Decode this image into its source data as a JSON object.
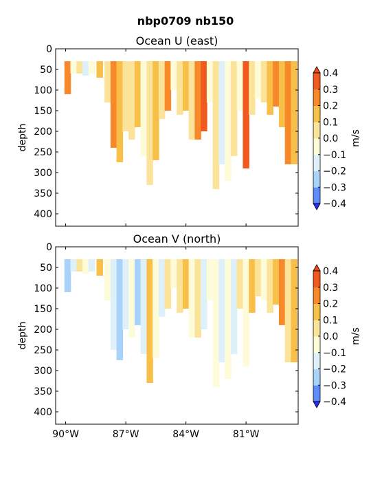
{
  "figure": {
    "title": "nbp0709 nb150"
  },
  "colors": {
    "levels": [
      -0.4,
      -0.3,
      -0.2,
      -0.1,
      0.0,
      0.1,
      0.2,
      0.3,
      0.4
    ],
    "under": "#2a2aff",
    "bins": [
      "#3a3aff",
      "#5c8dfb",
      "#a9d2fb",
      "#def1fb",
      "#fefbd8",
      "#fbe39a",
      "#f8c048",
      "#f7892a",
      "#f05a1e"
    ],
    "over": "#ee4a12"
  },
  "chart_data": [
    {
      "type": "heatmap",
      "title": "Ocean U (east)",
      "xlabel": "",
      "ylabel": "depth",
      "colorbar_label": "m/s",
      "colorbar_ticks": [
        "0.4",
        "0.3",
        "0.2",
        "0.1",
        "0.0",
        "−0.1",
        "−0.2",
        "−0.3",
        "−0.4"
      ],
      "xlim": [
        -90.5,
        -78.4
      ],
      "ylim": [
        430,
        0
      ],
      "yticks": [
        "0",
        "50",
        "100",
        "150",
        "200",
        "250",
        "300",
        "350",
        "400"
      ],
      "xtick_labels": [],
      "columns": [
        {
          "lon": -89.9,
          "top": 30,
          "bottom": 110,
          "u": 0.25
        },
        {
          "lon": -89.6,
          "top": 30,
          "bottom": 60,
          "u": -0.05
        },
        {
          "lon": -89.3,
          "top": 30,
          "bottom": 60,
          "u": 0.05
        },
        {
          "lon": -89.0,
          "top": 30,
          "bottom": 65,
          "u": -0.15
        },
        {
          "lon": -88.7,
          "top": 30,
          "bottom": 60,
          "u": -0.05
        },
        {
          "lon": -88.3,
          "top": 30,
          "bottom": 70,
          "u": 0.15
        },
        {
          "lon": -87.9,
          "top": 30,
          "bottom": 130,
          "u": 0.05
        },
        {
          "lon": -87.6,
          "top": 30,
          "bottom": 240,
          "u": 0.25
        },
        {
          "lon": -87.3,
          "top": 30,
          "bottom": 275,
          "u": 0.15
        },
        {
          "lon": -87.0,
          "top": 30,
          "bottom": 200,
          "u": 0.05
        },
        {
          "lon": -86.7,
          "top": 30,
          "bottom": 220,
          "u": 0.05
        },
        {
          "lon": -86.4,
          "top": 30,
          "bottom": 190,
          "u": 0.15
        },
        {
          "lon": -86.1,
          "top": 30,
          "bottom": 260,
          "u": -0.05
        },
        {
          "lon": -85.8,
          "top": 30,
          "bottom": 330,
          "u": 0.05
        },
        {
          "lon": -85.5,
          "top": 30,
          "bottom": 270,
          "u": 0.15
        },
        {
          "lon": -85.2,
          "top": 30,
          "bottom": 170,
          "u": 0.05
        },
        {
          "lon": -84.9,
          "top": 30,
          "bottom": 150,
          "u": 0.25
        },
        {
          "lon": -84.6,
          "top": 30,
          "bottom": 100,
          "u": -0.05
        },
        {
          "lon": -84.3,
          "top": 30,
          "bottom": 160,
          "u": 0.05
        },
        {
          "lon": -84.0,
          "top": 30,
          "bottom": 150,
          "u": 0.15
        },
        {
          "lon": -83.7,
          "top": 30,
          "bottom": 220,
          "u": 0.05
        },
        {
          "lon": -83.4,
          "top": 30,
          "bottom": 220,
          "u": 0.25
        },
        {
          "lon": -83.1,
          "top": 30,
          "bottom": 200,
          "u": 0.35
        },
        {
          "lon": -82.8,
          "top": 30,
          "bottom": 130,
          "u": -0.05
        },
        {
          "lon": -82.5,
          "top": 30,
          "bottom": 340,
          "u": 0.05
        },
        {
          "lon": -82.2,
          "top": 30,
          "bottom": 280,
          "u": -0.15
        },
        {
          "lon": -81.9,
          "top": 30,
          "bottom": 320,
          "u": -0.05
        },
        {
          "lon": -81.6,
          "top": 30,
          "bottom": 260,
          "u": 0.05
        },
        {
          "lon": -81.3,
          "top": 30,
          "bottom": 150,
          "u": -0.05
        },
        {
          "lon": -81.0,
          "top": 30,
          "bottom": 290,
          "u": 0.35
        },
        {
          "lon": -80.7,
          "top": 30,
          "bottom": 160,
          "u": 0.05
        },
        {
          "lon": -80.4,
          "top": 30,
          "bottom": 120,
          "u": -0.05
        },
        {
          "lon": -80.1,
          "top": 30,
          "bottom": 130,
          "u": 0.05
        },
        {
          "lon": -79.8,
          "top": 30,
          "bottom": 160,
          "u": 0.15
        },
        {
          "lon": -79.5,
          "top": 30,
          "bottom": 140,
          "u": 0.25
        },
        {
          "lon": -79.2,
          "top": 30,
          "bottom": 190,
          "u": 0.15
        },
        {
          "lon": -78.9,
          "top": 30,
          "bottom": 280,
          "u": 0.25
        },
        {
          "lon": -78.6,
          "top": 30,
          "bottom": 280,
          "u": 0.15
        }
      ]
    },
    {
      "type": "heatmap",
      "title": "Ocean V (north)",
      "xlabel": "",
      "ylabel": "depth",
      "colorbar_label": "m/s",
      "colorbar_ticks": [
        "0.4",
        "0.3",
        "0.2",
        "0.1",
        "0.0",
        "−0.1",
        "−0.2",
        "−0.3",
        "−0.4"
      ],
      "xlim": [
        -90.5,
        -78.4
      ],
      "ylim": [
        430,
        0
      ],
      "yticks": [
        "0",
        "50",
        "100",
        "150",
        "200",
        "250",
        "300",
        "350",
        "400"
      ],
      "xtick_labels": [
        "90°W",
        "87°W",
        "84°W",
        "81°W"
      ],
      "xtick_values": [
        -90,
        -87,
        -84,
        -81
      ],
      "columns": [
        {
          "lon": -89.9,
          "top": 30,
          "bottom": 110,
          "u": -0.25
        },
        {
          "lon": -89.6,
          "top": 30,
          "bottom": 60,
          "u": -0.15
        },
        {
          "lon": -89.3,
          "top": 30,
          "bottom": 60,
          "u": 0.05
        },
        {
          "lon": -89.0,
          "top": 30,
          "bottom": 65,
          "u": -0.05
        },
        {
          "lon": -88.7,
          "top": 30,
          "bottom": 60,
          "u": -0.15
        },
        {
          "lon": -88.3,
          "top": 30,
          "bottom": 70,
          "u": 0.15
        },
        {
          "lon": -87.9,
          "top": 30,
          "bottom": 130,
          "u": -0.05
        },
        {
          "lon": -87.6,
          "top": 30,
          "bottom": 250,
          "u": -0.15
        },
        {
          "lon": -87.3,
          "top": 30,
          "bottom": 275,
          "u": -0.25
        },
        {
          "lon": -87.0,
          "top": 30,
          "bottom": 200,
          "u": -0.15
        },
        {
          "lon": -86.7,
          "top": 30,
          "bottom": 220,
          "u": -0.05
        },
        {
          "lon": -86.4,
          "top": 30,
          "bottom": 190,
          "u": -0.25
        },
        {
          "lon": -86.1,
          "top": 30,
          "bottom": 260,
          "u": -0.15
        },
        {
          "lon": -85.8,
          "top": 30,
          "bottom": 330,
          "u": 0.15
        },
        {
          "lon": -85.5,
          "top": 30,
          "bottom": 270,
          "u": -0.05
        },
        {
          "lon": -85.2,
          "top": 30,
          "bottom": 170,
          "u": -0.15
        },
        {
          "lon": -84.9,
          "top": 30,
          "bottom": 150,
          "u": 0.05
        },
        {
          "lon": -84.6,
          "top": 30,
          "bottom": 100,
          "u": -0.05
        },
        {
          "lon": -84.3,
          "top": 30,
          "bottom": 160,
          "u": 0.05
        },
        {
          "lon": -84.0,
          "top": 30,
          "bottom": 150,
          "u": 0.15
        },
        {
          "lon": -83.7,
          "top": 30,
          "bottom": 220,
          "u": -0.05
        },
        {
          "lon": -83.4,
          "top": 30,
          "bottom": 220,
          "u": 0.05
        },
        {
          "lon": -83.1,
          "top": 30,
          "bottom": 200,
          "u": -0.15
        },
        {
          "lon": -82.8,
          "top": 30,
          "bottom": 130,
          "u": -0.05
        },
        {
          "lon": -82.5,
          "top": 30,
          "bottom": 340,
          "u": -0.05
        },
        {
          "lon": -82.2,
          "top": 30,
          "bottom": 280,
          "u": -0.15
        },
        {
          "lon": -81.9,
          "top": 30,
          "bottom": 320,
          "u": -0.05
        },
        {
          "lon": -81.6,
          "top": 30,
          "bottom": 260,
          "u": -0.15
        },
        {
          "lon": -81.3,
          "top": 30,
          "bottom": 150,
          "u": 0.05
        },
        {
          "lon": -81.0,
          "top": 30,
          "bottom": 290,
          "u": -0.05
        },
        {
          "lon": -80.7,
          "top": 30,
          "bottom": 160,
          "u": 0.15
        },
        {
          "lon": -80.4,
          "top": 30,
          "bottom": 120,
          "u": 0.05
        },
        {
          "lon": -80.1,
          "top": 30,
          "bottom": 130,
          "u": -0.05
        },
        {
          "lon": -79.8,
          "top": 30,
          "bottom": 160,
          "u": 0.05
        },
        {
          "lon": -79.5,
          "top": 30,
          "bottom": 140,
          "u": 0.15
        },
        {
          "lon": -79.2,
          "top": 30,
          "bottom": 190,
          "u": 0.25
        },
        {
          "lon": -78.9,
          "top": 30,
          "bottom": 280,
          "u": 0.05
        },
        {
          "lon": -78.6,
          "top": 30,
          "bottom": 280,
          "u": 0.15
        }
      ]
    }
  ]
}
